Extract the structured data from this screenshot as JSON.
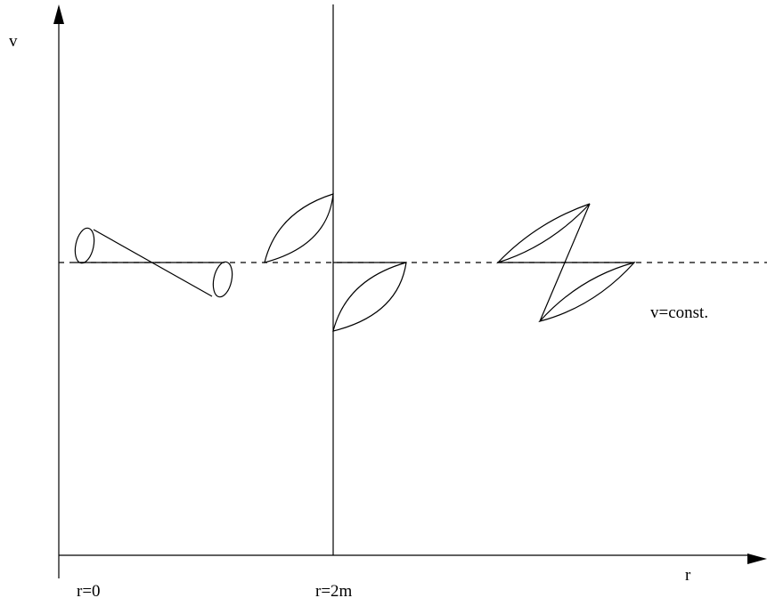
{
  "axes": {
    "y_label": "v",
    "x_label": "r"
  },
  "tick_labels": {
    "origin": "r=0",
    "horizon": "r=2m"
  },
  "annotation": {
    "constant_line": "v=const."
  },
  "colors": {
    "ink": "#000000",
    "background": "#ffffff"
  }
}
